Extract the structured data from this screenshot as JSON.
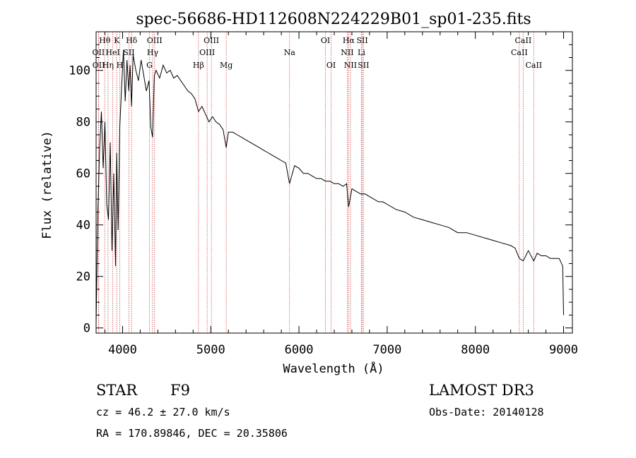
{
  "chart_data": {
    "type": "line",
    "title": "spec-56686-HD112608N224229B01_sp01-235.fits",
    "xlabel": "Wavelength (Å)",
    "ylabel": "Flux (relative)",
    "xlim": [
      3700,
      9100
    ],
    "ylim": [
      -2,
      115
    ],
    "xticks": [
      4000,
      5000,
      6000,
      7000,
      8000,
      9000
    ],
    "yticks": [
      0,
      20,
      40,
      60,
      80,
      100
    ],
    "grid": false,
    "series": [
      {
        "name": "flux",
        "x": [
          3700,
          3720,
          3740,
          3760,
          3780,
          3800,
          3820,
          3840,
          3860,
          3880,
          3900,
          3920,
          3933,
          3950,
          3968,
          3990,
          4010,
          4030,
          4050,
          4070,
          4085,
          4101,
          4120,
          4150,
          4180,
          4210,
          4240,
          4270,
          4300,
          4320,
          4340,
          4360,
          4380,
          4420,
          4460,
          4500,
          4540,
          4580,
          4620,
          4660,
          4700,
          4740,
          4780,
          4820,
          4861,
          4900,
          4940,
          4980,
          5020,
          5060,
          5100,
          5140,
          5175,
          5200,
          5250,
          5300,
          5350,
          5400,
          5450,
          5500,
          5550,
          5600,
          5650,
          5700,
          5750,
          5800,
          5850,
          5893,
          5950,
          6000,
          6050,
          6100,
          6150,
          6200,
          6250,
          6300,
          6350,
          6400,
          6450,
          6500,
          6540,
          6563,
          6600,
          6650,
          6700,
          6750,
          6800,
          6850,
          6900,
          6950,
          7000,
          7100,
          7200,
          7300,
          7400,
          7500,
          7600,
          7700,
          7800,
          7900,
          8000,
          8100,
          8200,
          8300,
          8400,
          8450,
          8498,
          8542,
          8600,
          8662,
          8700,
          8750,
          8800,
          8850,
          8900,
          8950,
          8990,
          9000
        ],
        "values": [
          2,
          45,
          70,
          84,
          62,
          80,
          48,
          42,
          72,
          30,
          60,
          24,
          68,
          38,
          78,
          94,
          108,
          88,
          104,
          92,
          102,
          86,
          106,
          100,
          96,
          104,
          98,
          92,
          96,
          78,
          74,
          98,
          100,
          97,
          102,
          99,
          100,
          97,
          98,
          96,
          94,
          92,
          91,
          89,
          84,
          86,
          83,
          80,
          82,
          80,
          79,
          77,
          70,
          76,
          76,
          75,
          74,
          73,
          72,
          71,
          70,
          69,
          68,
          67,
          66,
          65,
          64,
          56,
          63,
          62,
          60,
          60,
          59,
          58,
          58,
          57,
          57,
          56,
          56,
          55,
          56,
          47,
          54,
          53,
          52,
          52,
          51,
          50,
          49,
          49,
          48,
          46,
          45,
          43,
          42,
          41,
          40,
          39,
          37,
          37,
          36,
          35,
          34,
          33,
          32,
          31,
          27,
          26,
          30,
          26,
          29,
          28,
          28,
          27,
          27,
          27,
          24,
          5
        ]
      }
    ],
    "lines": [
      {
        "label": "Hθ",
        "wavelength": 3798,
        "row": 1
      },
      {
        "label": "OII",
        "wavelength": 3727,
        "row": 2
      },
      {
        "label": "OII",
        "wavelength": 3729,
        "row": 3
      },
      {
        "label": "Hη",
        "wavelength": 3835,
        "row": 3
      },
      {
        "label": "K",
        "wavelength": 3934,
        "row": 1
      },
      {
        "label": "HeI",
        "wavelength": 3889,
        "row": 2
      },
      {
        "label": "SII",
        "wavelength": 4072,
        "row": 2
      },
      {
        "label": "Hδ",
        "wavelength": 4102,
        "row": 1
      },
      {
        "label": "H",
        "wavelength": 3968,
        "row": 3
      },
      {
        "label": "OIII",
        "wavelength": 4363,
        "row": 1
      },
      {
        "label": "Hγ",
        "wavelength": 4341,
        "row": 2
      },
      {
        "label": "G",
        "wavelength": 4305,
        "row": 3
      },
      {
        "label": "OIII",
        "wavelength": 5007,
        "row": 1
      },
      {
        "label": "OIII",
        "wavelength": 4959,
        "row": 2
      },
      {
        "label": "Hβ",
        "wavelength": 4861,
        "row": 3
      },
      {
        "label": "Mg",
        "wavelength": 5175,
        "row": 3
      },
      {
        "label": "Na",
        "wavelength": 5893,
        "row": 2
      },
      {
        "label": "OI",
        "wavelength": 6300,
        "row": 1
      },
      {
        "label": "OI",
        "wavelength": 6364,
        "row": 3
      },
      {
        "label": "Hα",
        "wavelength": 6563,
        "row": 1
      },
      {
        "label": "NII",
        "wavelength": 6548,
        "row": 2
      },
      {
        "label": "NII",
        "wavelength": 6584,
        "row": 3
      },
      {
        "label": "SII",
        "wavelength": 6717,
        "row": 1
      },
      {
        "label": "Li",
        "wavelength": 6708,
        "row": 2
      },
      {
        "label": "SII",
        "wavelength": 6731,
        "row": 3
      },
      {
        "label": "CaII",
        "wavelength": 8542,
        "row": 1
      },
      {
        "label": "CaII",
        "wavelength": 8498,
        "row": 2
      },
      {
        "label": "CaII",
        "wavelength": 8662,
        "row": 3
      }
    ],
    "line_color": "#d04848"
  },
  "info": {
    "object_class": "STAR",
    "subclass": "F9",
    "survey": "LAMOST DR3",
    "cz": "cz = 46.2 ± 27.0 km/s",
    "obs_date": "Obs-Date: 20140128",
    "coords": "RA = 170.89846, DEC =  20.35806"
  }
}
